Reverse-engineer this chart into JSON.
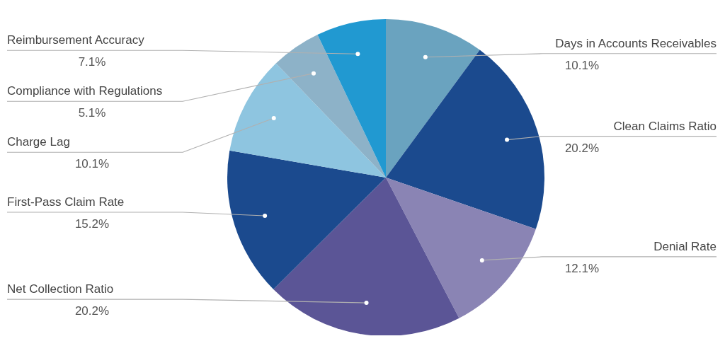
{
  "chart_data": {
    "type": "pie",
    "categories": [
      "Days in Accounts Receivables",
      "Clean Claims Ratio",
      "Denial Rate",
      "Net Collection Ratio",
      "First-Pass Claim Rate",
      "Charge Lag",
      "Compliance with Regulations",
      "Reimbursement Accuracy"
    ],
    "values": [
      10.1,
      20.2,
      12.1,
      20.2,
      15.2,
      10.1,
      5.1,
      7.1
    ],
    "value_labels": [
      "10.1%",
      "20.2%",
      "12.1%",
      "20.2%",
      "15.2%",
      "10.1%",
      "5.1%",
      "7.1%"
    ],
    "colors": [
      "#6aa3bf",
      "#1b4a8e",
      "#8a84b4",
      "#5b5596",
      "#1b4a8e",
      "#8ec5e0",
      "#8db2c8",
      "#2199d1"
    ]
  }
}
